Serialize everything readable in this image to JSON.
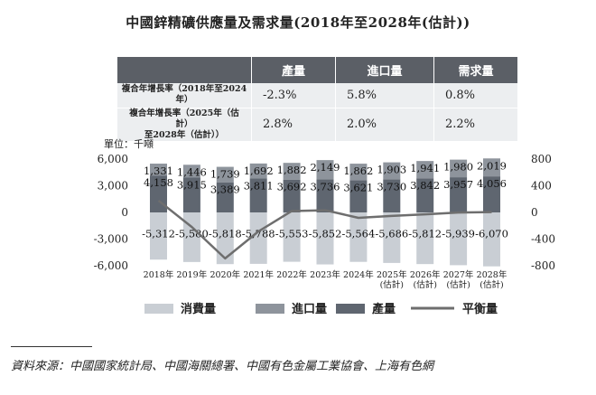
{
  "title": "中國鋅精礦供應量及需求量(2018年至2028年(估計))",
  "table": {
    "headers": [
      "",
      "產量",
      "進口量",
      "需求量"
    ],
    "rows": [
      {
        "label_lines": [
          "複合年增長率（2018年至2024年）"
        ],
        "values": [
          "-2.3%",
          "5.8%",
          "0.8%"
        ]
      },
      {
        "label_lines": [
          "複合年增長率（2025年（估計）",
          "至2028年（估計））"
        ],
        "values": [
          "2.8%",
          "2.0%",
          "2.2%"
        ]
      }
    ]
  },
  "unit_label": "單位：千噸",
  "source": "資料來源：中國國家統計局、中國海關總署、中國有色金屬工業協會、上海有色網",
  "colors": {
    "consumption": "#c9ced4",
    "imports": "#8e949c",
    "production": "#5f6670",
    "balance": "#6e6e6e",
    "header": "#5b5f66"
  },
  "chart_data": {
    "type": "bar",
    "categories": [
      [
        "2018年"
      ],
      [
        "2019年"
      ],
      [
        "2020年"
      ],
      [
        "2021年"
      ],
      [
        "2022年"
      ],
      [
        "2023年"
      ],
      [
        "2024年"
      ],
      [
        "2025年",
        "(估計)"
      ],
      [
        "2026年",
        "(估計)"
      ],
      [
        "2027年",
        "(估計)"
      ],
      [
        "2028年",
        "(估計)"
      ]
    ],
    "series": [
      {
        "name": "消費量",
        "axis": "left",
        "values": [
          -5312,
          -5580,
          -5818,
          -5788,
          -5553,
          -5852,
          -5564,
          -5686,
          -5812,
          -5939,
          -6070
        ]
      },
      {
        "name": "進口量",
        "axis": "left",
        "values": [
          1331,
          1446,
          1739,
          1692,
          1882,
          2149,
          1862,
          1903,
          1941,
          1980,
          2019
        ]
      },
      {
        "name": "產量",
        "axis": "left",
        "values": [
          4158,
          3915,
          3389,
          3811,
          3692,
          3736,
          3621,
          3730,
          3842,
          3957,
          4056
        ]
      },
      {
        "name": "平衡量",
        "axis": "right",
        "type": "line",
        "values": [
          177,
          -219,
          -690,
          -285,
          21,
          33,
          -81,
          -53,
          -29,
          -2,
          5
        ]
      }
    ],
    "y_left": {
      "ticks": [
        "6,000",
        "3,000",
        "0",
        "-3,000",
        "-6,000"
      ],
      "ylim": [
        -6000,
        6000
      ]
    },
    "y_right": {
      "ticks": [
        "800",
        "400",
        "0",
        "-400",
        "-800"
      ],
      "ylim": [
        -800,
        800
      ]
    },
    "legend_position": "bottom",
    "grid": false
  }
}
